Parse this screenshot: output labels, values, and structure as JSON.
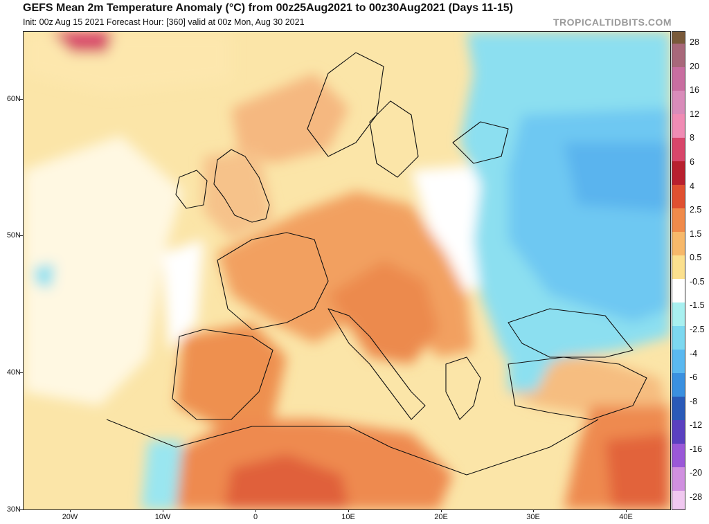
{
  "header": {
    "title": "GEFS Mean 2m Temperature Anomaly (°C) from 00z25Aug2021 to 00z30Aug2021 (Days 11-15)",
    "subtitle": "Init: 00z Aug 15 2021   Forecast Hour: [360]   valid at 00z Mon, Aug 30 2021",
    "brand": "TROPICALTIDBITS.COM"
  },
  "map": {
    "lat_labels": [
      "60N",
      "50N",
      "40N",
      "30N"
    ],
    "lon_labels": [
      "20W",
      "10W",
      "0",
      "10E",
      "20E",
      "30E",
      "40E"
    ]
  },
  "legend": {
    "labels": [
      "28",
      "20",
      "16",
      "12",
      "8",
      "6",
      "4",
      "2.5",
      "1.5",
      "0.5",
      "-0.5",
      "-1.5",
      "-2.5",
      "-4",
      "-6",
      "-8",
      "-12",
      "-16",
      "-20",
      "-28"
    ],
    "colors": [
      "#7a5a3a",
      "#c86ea0",
      "#d98cba",
      "#e6a6cc",
      "#f08cb4",
      "#d8466a",
      "#b8202e",
      "#e05030",
      "#f08a4a",
      "#f7b86a",
      "#fbdc90",
      "#fffbe0",
      "#ffffff",
      "#a8f0f0",
      "#7cd8f0",
      "#5ab8f0",
      "#3a90e0",
      "#2a6ac8",
      "#3a4aa8",
      "#6a40c8",
      "#9a58d8",
      "#c080e0",
      "#dca0e8",
      "#f0c8f0"
    ]
  }
}
